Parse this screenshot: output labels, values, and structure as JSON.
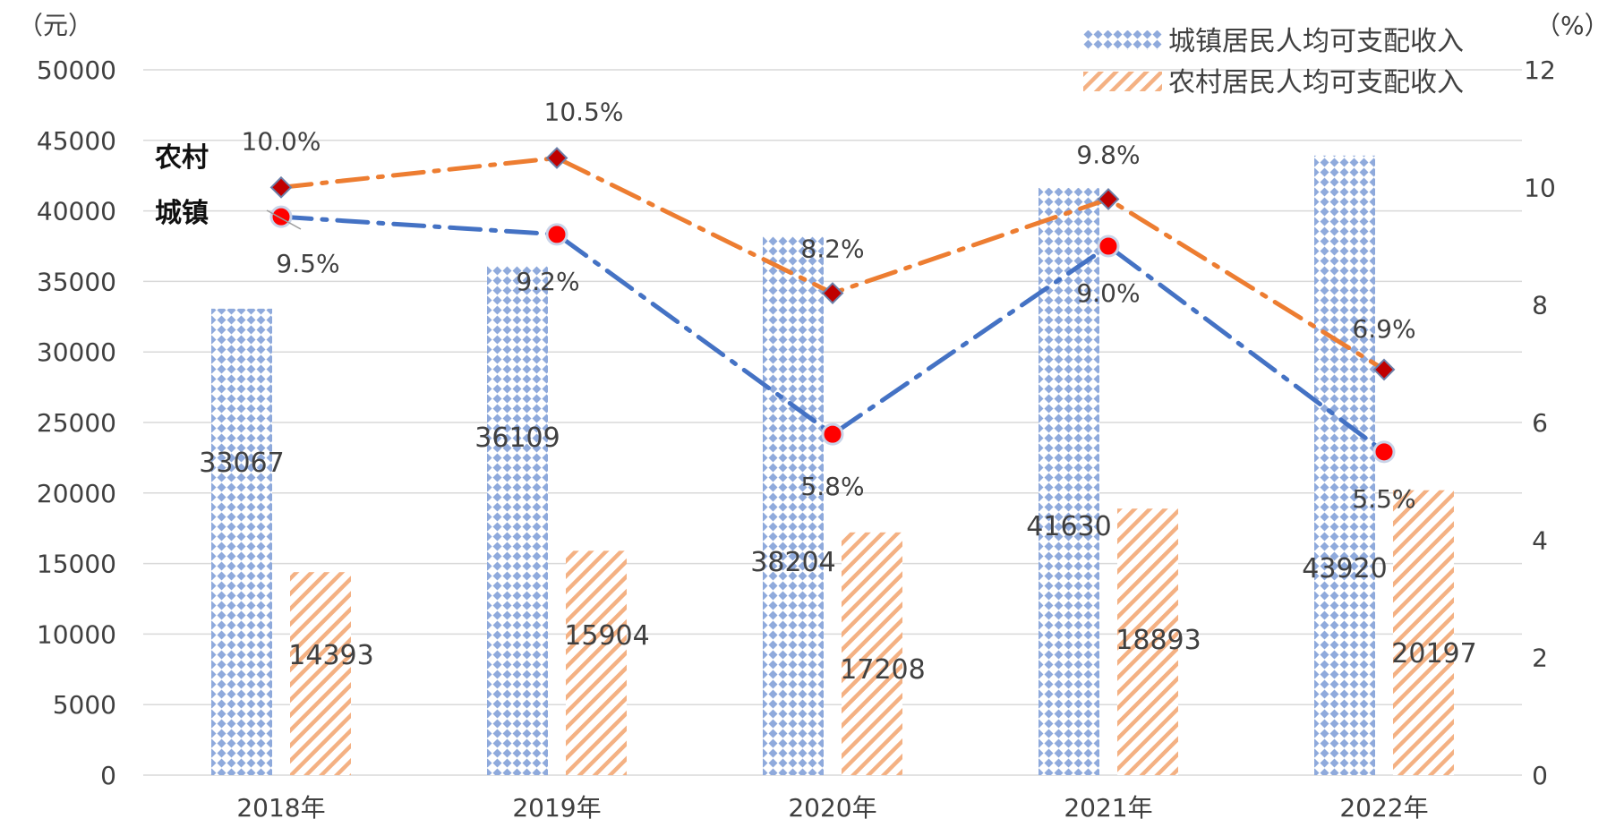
{
  "chart_data": {
    "type": "bar",
    "categories": [
      "2018年",
      "2019年",
      "2020年",
      "2021年",
      "2022年"
    ],
    "y_left": {
      "unit": "（元）",
      "ticks": [
        0,
        5000,
        10000,
        15000,
        20000,
        25000,
        30000,
        35000,
        40000,
        45000,
        50000
      ],
      "ylim": [
        0,
        50000
      ]
    },
    "y_right": {
      "unit": "（%）",
      "ticks": [
        0,
        2,
        4,
        6,
        8,
        10,
        12
      ],
      "ylim": [
        0,
        12
      ]
    },
    "grid": true,
    "legend_position": "top-right",
    "series": [
      {
        "name": "城镇居民人均可支配收入",
        "kind": "bar",
        "axis": "left",
        "values": [
          33067,
          36109,
          38204,
          41630,
          43920
        ],
        "labels": [
          "33067",
          "36109",
          "38204",
          "41630",
          "43920"
        ],
        "color": "#8faadc"
      },
      {
        "name": "农村居民人均可支配收入",
        "kind": "bar",
        "axis": "left",
        "values": [
          14393,
          15904,
          17208,
          18893,
          20197
        ],
        "labels": [
          "14393",
          "15904",
          "17208",
          "18893",
          "20197"
        ],
        "color": "#f4b183"
      }
    ],
    "lines": [
      {
        "name": "农村",
        "kind": "line",
        "axis": "right",
        "values": [
          10.0,
          10.5,
          8.2,
          9.8,
          6.9
        ],
        "labels": [
          "10.0%",
          "10.5%",
          "8.2%",
          "9.8%",
          "6.9%"
        ],
        "color": "#ed7d31",
        "marker_color": "#c00000"
      },
      {
        "name": "城镇",
        "kind": "line",
        "axis": "right",
        "values": [
          9.5,
          9.2,
          5.8,
          9.0,
          5.5
        ],
        "labels": [
          "9.5%",
          "9.2%",
          "5.8%",
          "9.0%",
          "5.5%"
        ],
        "color": "#4472c4",
        "marker_color": "#ff0000"
      }
    ]
  }
}
